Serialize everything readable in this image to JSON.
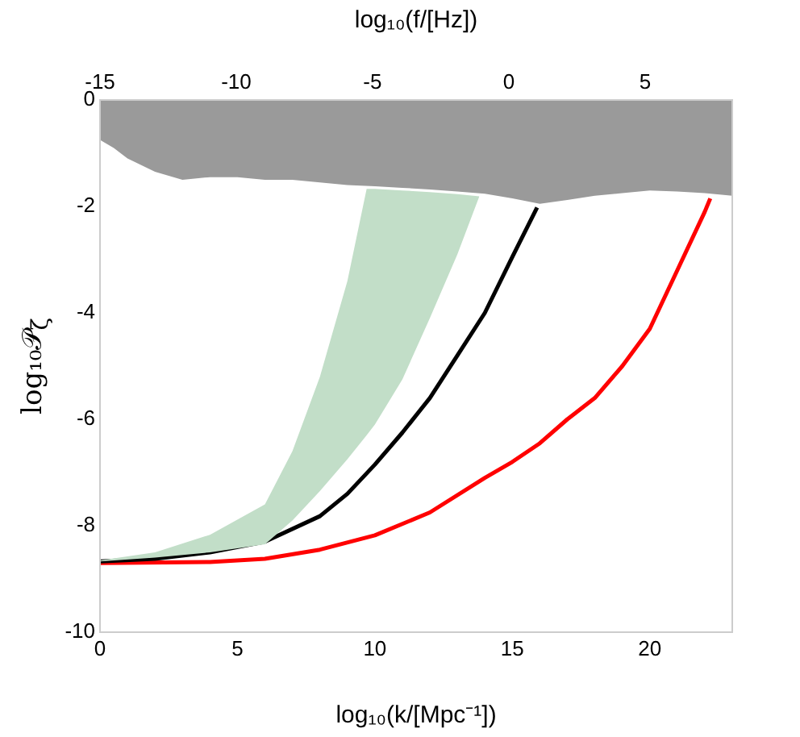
{
  "chart_data": {
    "type": "line",
    "xlabel": "log₁₀(k/[Mpc⁻¹])",
    "x2label": "log₁₀(f/[Hz])",
    "ylabel": "log₁₀𝒫$_{ζ}$",
    "xlim": [
      0,
      23
    ],
    "xticks": [
      0,
      5,
      10,
      15,
      20
    ],
    "x2lim": [
      -15,
      8.2
    ],
    "x2ticks": [
      -15,
      -10,
      -5,
      0,
      5
    ],
    "ylim": [
      -10,
      0
    ],
    "yticks": [
      -10,
      -8,
      -6,
      -4,
      -2,
      0
    ],
    "marker": "none",
    "series": [
      {
        "type": "area",
        "color": "#9a9a9a",
        "x": [
          0,
          0.5,
          1,
          2,
          3,
          4,
          5,
          6,
          7,
          8,
          9,
          10,
          11,
          12,
          13,
          14,
          15,
          16,
          17,
          18,
          19,
          20,
          21,
          22,
          23
        ],
        "values": [
          -0.75,
          -0.9,
          -1.1,
          -1.35,
          -1.5,
          -1.45,
          -1.45,
          -1.5,
          -1.5,
          -1.55,
          -1.6,
          -1.62,
          -1.65,
          -1.68,
          -1.72,
          -1.76,
          -1.85,
          -1.95,
          -1.88,
          -1.8,
          -1.75,
          -1.7,
          -1.72,
          -1.75,
          -1.8
        ]
      },
      {
        "color": "#c2dec8",
        "x": [
          0,
          2,
          4,
          6,
          7,
          8,
          9,
          9.7,
          10,
          11,
          12,
          13,
          13.8
        ],
        "values": [
          null,
          null,
          null,
          null,
          null,
          null,
          null,
          null,
          null,
          null,
          null,
          null,
          null
        ],
        "upper": [
          -8.65,
          -8.5,
          -8.17,
          -7.6,
          -6.6,
          -5.2,
          -3.4,
          -1.67,
          -1.67,
          -1.7,
          -1.73,
          -1.77,
          -1.81
        ],
        "lower": [
          -8.67,
          -8.6,
          -8.5,
          -8.35,
          -7.9,
          -7.35,
          -6.75,
          -6.3,
          -6.1,
          -5.25,
          -4.1,
          -2.9,
          -1.81
        ]
      },
      {
        "color": "#000000",
        "x": [
          0,
          2,
          4,
          6,
          8,
          9,
          10,
          11,
          12,
          13,
          14,
          15,
          15.9
        ],
        "values": [
          -8.67,
          -8.62,
          -8.5,
          -8.3,
          -7.82,
          -7.4,
          -6.85,
          -6.25,
          -5.6,
          -4.8,
          -4.0,
          -2.95,
          -2.02
        ]
      },
      {
        "color": "#ff0000",
        "x": [
          0,
          4,
          6,
          8,
          10,
          12,
          14,
          15,
          16,
          17,
          18,
          19,
          20,
          21,
          22,
          22.2
        ],
        "values": [
          -8.7,
          -8.68,
          -8.62,
          -8.45,
          -8.18,
          -7.75,
          -7.1,
          -6.8,
          -6.45,
          -6.0,
          -5.6,
          -5.0,
          -4.3,
          -3.2,
          -2.1,
          -1.85
        ]
      }
    ]
  }
}
